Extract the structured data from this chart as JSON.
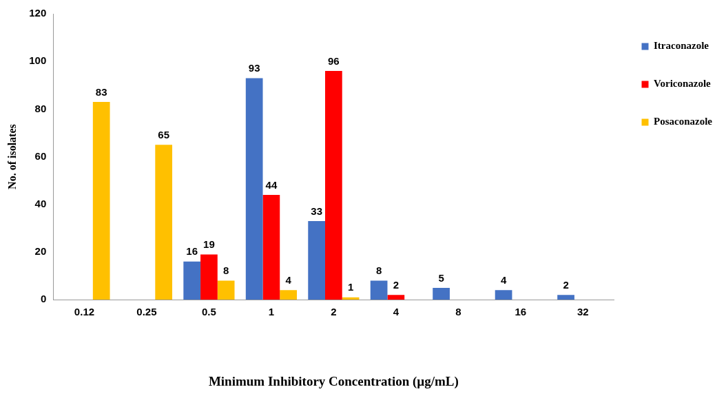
{
  "chart_data": {
    "type": "bar",
    "xlabel": "Minimum Inhibitory Concentration (µg/mL)",
    "ylabel": "No. of isolates",
    "categories": [
      "0.12",
      "0.25",
      "0.5",
      "1",
      "2",
      "4",
      "8",
      "16",
      "32"
    ],
    "series": [
      {
        "name": "Itraconazole",
        "color": "#4472c4",
        "values": [
          null,
          null,
          16,
          93,
          33,
          8,
          5,
          4,
          2
        ],
        "value_labels": [
          null,
          null,
          "16",
          "93",
          "33",
          "8",
          "5",
          "4",
          "2"
        ]
      },
      {
        "name": "Voriconazole",
        "color": "#ff0000",
        "values": [
          null,
          null,
          19,
          44,
          96,
          2,
          null,
          null,
          null
        ],
        "value_labels": [
          null,
          null,
          "19",
          "44",
          "96",
          "2",
          null,
          null,
          null
        ]
      },
      {
        "name": "Posaconazole",
        "color": "#ffc000",
        "values": [
          83,
          65,
          8,
          4,
          1,
          null,
          null,
          null,
          null
        ],
        "value_labels": [
          "83",
          "65",
          "8",
          "4",
          "1",
          null,
          null,
          null,
          null
        ]
      }
    ],
    "ylim": [
      0,
      120
    ],
    "yticks": [
      0,
      20,
      40,
      60,
      80,
      100,
      120
    ],
    "grid": false,
    "legend": "top right"
  }
}
